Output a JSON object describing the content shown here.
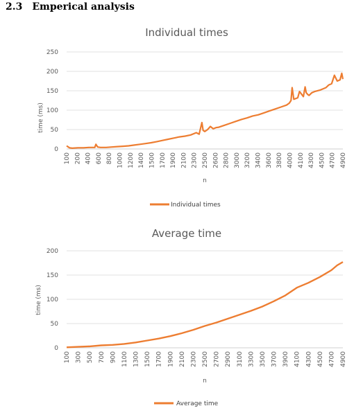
{
  "section": {
    "number": "2.3",
    "title": "Emperical analysis"
  },
  "colors": {
    "series": "#ed7d31"
  },
  "chart_data": [
    {
      "type": "line",
      "title": "Individual times",
      "xlabel": "n",
      "ylabel": "time (ms)",
      "ylim": [
        0,
        250
      ],
      "yticks": [
        0,
        50,
        100,
        150,
        200,
        250
      ],
      "grid": true,
      "legend_position": "bottom",
      "xlim": [
        100,
        5000
      ],
      "xticks": [
        "100",
        "200",
        "400",
        "600",
        "800",
        "1000",
        "1200",
        "1400",
        "1500",
        "1700",
        "1900",
        "2100",
        "2300",
        "2500",
        "2600",
        "2800",
        "3000",
        "3200",
        "3400",
        "3600",
        "3800",
        "4000",
        "4100",
        "4300",
        "4500",
        "4700",
        "4900"
      ],
      "series": [
        {
          "name": "Individual times",
          "x": [
            100,
            150,
            200,
            300,
            400,
            500,
            600,
            620,
            650,
            700,
            800,
            900,
            1000,
            1100,
            1200,
            1300,
            1400,
            1500,
            1600,
            1700,
            1800,
            1900,
            2000,
            2100,
            2200,
            2300,
            2400,
            2450,
            2500,
            2520,
            2550,
            2600,
            2650,
            2700,
            2750,
            2800,
            2900,
            3000,
            3100,
            3200,
            3300,
            3400,
            3500,
            3600,
            3700,
            3800,
            3900,
            4000,
            4050,
            4080,
            4100,
            4130,
            4200,
            4230,
            4300,
            4330,
            4350,
            4380,
            4400,
            4450,
            4500,
            4600,
            4700,
            4750,
            4800,
            4850,
            4900,
            4950,
            4980,
            5000
          ],
          "y": [
            8,
            3,
            2,
            3,
            3,
            4,
            4,
            12,
            5,
            4,
            4,
            5,
            6,
            7,
            8,
            10,
            12,
            14,
            16,
            19,
            22,
            25,
            28,
            31,
            33,
            36,
            42,
            38,
            68,
            48,
            45,
            50,
            58,
            52,
            55,
            56,
            61,
            66,
            71,
            76,
            80,
            85,
            88,
            93,
            98,
            103,
            108,
            113,
            118,
            125,
            158,
            128,
            132,
            148,
            135,
            160,
            145,
            140,
            138,
            145,
            148,
            152,
            158,
            165,
            168,
            190,
            175,
            178,
            195,
            180
          ]
        }
      ]
    },
    {
      "type": "line",
      "title": "Average time",
      "xlabel": "n",
      "ylabel": "time (ms)",
      "ylim": [
        0,
        200
      ],
      "yticks": [
        0,
        50,
        100,
        150,
        200
      ],
      "grid": true,
      "legend_position": "bottom",
      "xlim": [
        100,
        4900
      ],
      "xticks": [
        "100",
        "300",
        "500",
        "700",
        "900",
        "1100",
        "1300",
        "1500",
        "1700",
        "1900",
        "2100",
        "2300",
        "2500",
        "2700",
        "2900",
        "3100",
        "3300",
        "3500",
        "3700",
        "3900",
        "4100",
        "4300",
        "4500",
        "4700",
        "4900"
      ],
      "series": [
        {
          "name": "Average time",
          "x": [
            100,
            300,
            500,
            700,
            900,
            1100,
            1300,
            1500,
            1700,
            1900,
            2100,
            2300,
            2500,
            2700,
            2900,
            3100,
            3300,
            3500,
            3700,
            3900,
            4100,
            4300,
            4500,
            4700,
            4800,
            4900
          ],
          "y": [
            1,
            2,
            3,
            5,
            6,
            8,
            11,
            15,
            19,
            24,
            30,
            37,
            45,
            52,
            60,
            68,
            76,
            85,
            96,
            108,
            124,
            134,
            146,
            160,
            170,
            177
          ]
        }
      ]
    }
  ]
}
